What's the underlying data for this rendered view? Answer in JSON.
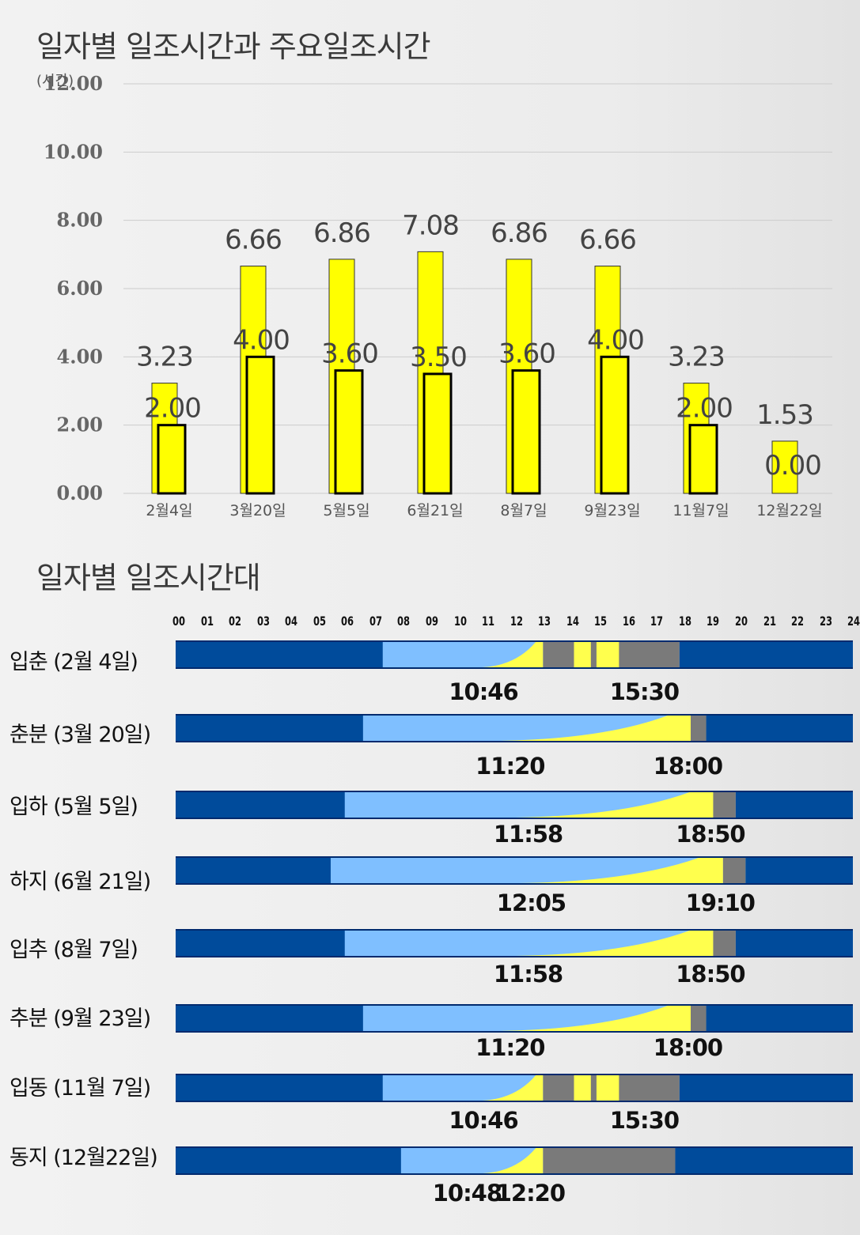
{
  "titles": {
    "chart": "일자별 일조시간과 주요일조시간",
    "timeline": "일자별 일조시간대"
  },
  "colors": {
    "total_bar": "#ffff00",
    "main_bar_outline": "#000000",
    "night": "#004b9b",
    "daylight": "#7fbfff",
    "sun": "#ffff4d",
    "gray": "#7a7a7a",
    "grid": "#cccccc",
    "label": "#444444"
  },
  "chart_data": {
    "type": "bar",
    "ylabel": "(시간)",
    "ylim": [
      0,
      12
    ],
    "yticks": [
      "0.00",
      "2.00",
      "4.00",
      "6.00",
      "8.00",
      "10.00",
      "12.00"
    ],
    "categories": [
      "2월4일",
      "3월20일",
      "5월5일",
      "6월21일",
      "8월7일",
      "9월23일",
      "11월7일",
      "12월22일"
    ],
    "series": [
      {
        "values": [
          3.23,
          6.66,
          6.86,
          7.08,
          6.86,
          6.66,
          3.23,
          1.53
        ],
        "labels": [
          "3.23",
          "6.66",
          "6.86",
          "7.08",
          "6.86",
          "6.66",
          "3.23",
          "1.53"
        ]
      },
      {
        "values": [
          2.0,
          4.0,
          3.6,
          3.5,
          3.6,
          4.0,
          2.0,
          0.0
        ],
        "labels": [
          "2.00",
          "4.00",
          "3.60",
          "3.50",
          "3.60",
          "4.00",
          "2.00",
          "0.00"
        ]
      }
    ]
  },
  "timeline": {
    "hours": [
      "00",
      "01",
      "02",
      "03",
      "04",
      "05",
      "06",
      "07",
      "08",
      "09",
      "10",
      "11",
      "12",
      "13",
      "14",
      "15",
      "16",
      "17",
      "18",
      "19",
      "20",
      "21",
      "22",
      "23",
      "24"
    ],
    "rows": [
      {
        "label": "입춘 (2월 4일)",
        "times": [
          "10:46",
          "15:30"
        ],
        "sunrise": 7.25,
        "sunwedge": 10.78,
        "gray_start": 12.95,
        "gray_end": 17.8,
        "sun_blocks": [
          [
            14.05,
            14.65
          ],
          [
            14.85,
            15.65
          ]
        ],
        "sunset": 17.8
      },
      {
        "label": "춘분 (3월 20일)",
        "times": [
          "11:20",
          "18:00"
        ],
        "sunrise": 6.55,
        "sunwedge": 11.33,
        "gray_start": 18.2,
        "gray_end": 18.75,
        "sun_blocks": [],
        "sunset": 18.75
      },
      {
        "label": "입하 (5월 5일)",
        "times": [
          "11:58",
          "18:50"
        ],
        "sunrise": 5.9,
        "sunwedge": 11.97,
        "gray_start": 19.0,
        "gray_end": 19.8,
        "sun_blocks": [],
        "sunset": 19.8
      },
      {
        "label": "하지 (6월 21일)",
        "times": [
          "12:05",
          "19:10"
        ],
        "sunrise": 5.4,
        "sunwedge": 12.08,
        "gray_start": 19.35,
        "gray_end": 20.15,
        "sun_blocks": [],
        "sunset": 20.15
      },
      {
        "label": "입추 (8월 7일)",
        "times": [
          "11:58",
          "18:50"
        ],
        "sunrise": 5.9,
        "sunwedge": 11.97,
        "gray_start": 19.0,
        "gray_end": 19.8,
        "sun_blocks": [],
        "sunset": 19.8
      },
      {
        "label": "추분 (9월 23일)",
        "times": [
          "11:20",
          "18:00"
        ],
        "sunrise": 6.55,
        "sunwedge": 11.33,
        "gray_start": 18.2,
        "gray_end": 18.75,
        "sun_blocks": [],
        "sunset": 18.75
      },
      {
        "label": "입동 (11월 7일)",
        "times": [
          "10:46",
          "15:30"
        ],
        "sunrise": 7.25,
        "sunwedge": 10.78,
        "gray_start": 12.95,
        "gray_end": 17.8,
        "sun_blocks": [
          [
            14.05,
            14.65
          ],
          [
            14.85,
            15.65
          ]
        ],
        "sunset": 17.8
      },
      {
        "label": "동지 (12월22일)",
        "times": [
          "10:48",
          "12:20"
        ],
        "sunrise": 7.9,
        "sunwedge": 10.8,
        "gray_start": 12.95,
        "gray_end": 17.65,
        "sun_blocks": [],
        "sunset": 17.65
      }
    ]
  }
}
